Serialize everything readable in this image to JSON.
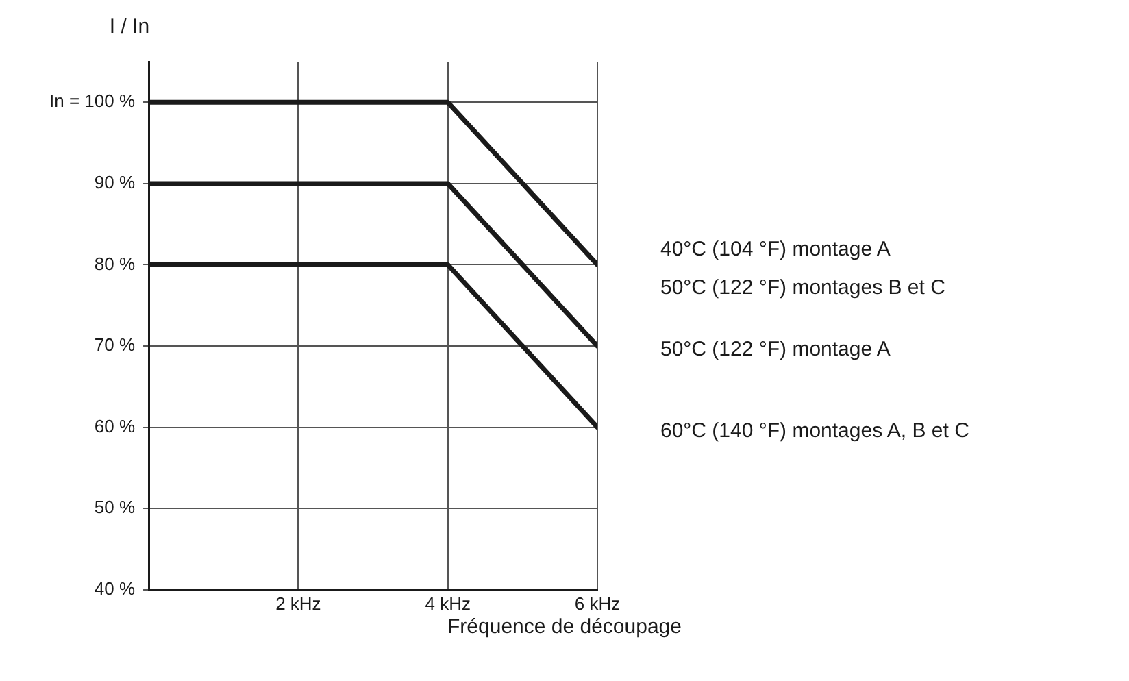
{
  "chart_data": {
    "type": "line",
    "ylabel": "I / In",
    "xlabel": "Fréquence de découpage",
    "xlim": [
      0,
      6
    ],
    "xticks": [
      {
        "value": 2,
        "label": "2 kHz"
      },
      {
        "value": 4,
        "label": "4 kHz"
      },
      {
        "value": 6,
        "label": "6 kHz"
      }
    ],
    "ylim": [
      40,
      105
    ],
    "yticks": [
      {
        "value": 40,
        "label": "40 %"
      },
      {
        "value": 50,
        "label": "50 %"
      },
      {
        "value": 60,
        "label": "60 %"
      },
      {
        "value": 70,
        "label": "70 %"
      },
      {
        "value": 80,
        "label": "80 %"
      },
      {
        "value": 90,
        "label": "90 %"
      },
      {
        "value": 100,
        "label": "In = 100 %"
      }
    ],
    "grid": true,
    "legend": false,
    "marker": "none",
    "line_style": "solid",
    "series": [
      {
        "name": "40°C (104 °F) montage A\n50°C (122 °F) montages B et C",
        "color": "#1a1a1a",
        "x": [
          0,
          4,
          6
        ],
        "values": [
          100,
          100,
          80
        ]
      },
      {
        "name": "50°C (122 °F) montage A",
        "color": "#1a1a1a",
        "x": [
          0,
          4,
          6
        ],
        "values": [
          90,
          90,
          70
        ]
      },
      {
        "name": "60°C (140 °F) montages A, B et C",
        "color": "#1a1a1a",
        "x": [
          0,
          4,
          6
        ],
        "values": [
          80,
          80,
          60
        ]
      }
    ]
  }
}
